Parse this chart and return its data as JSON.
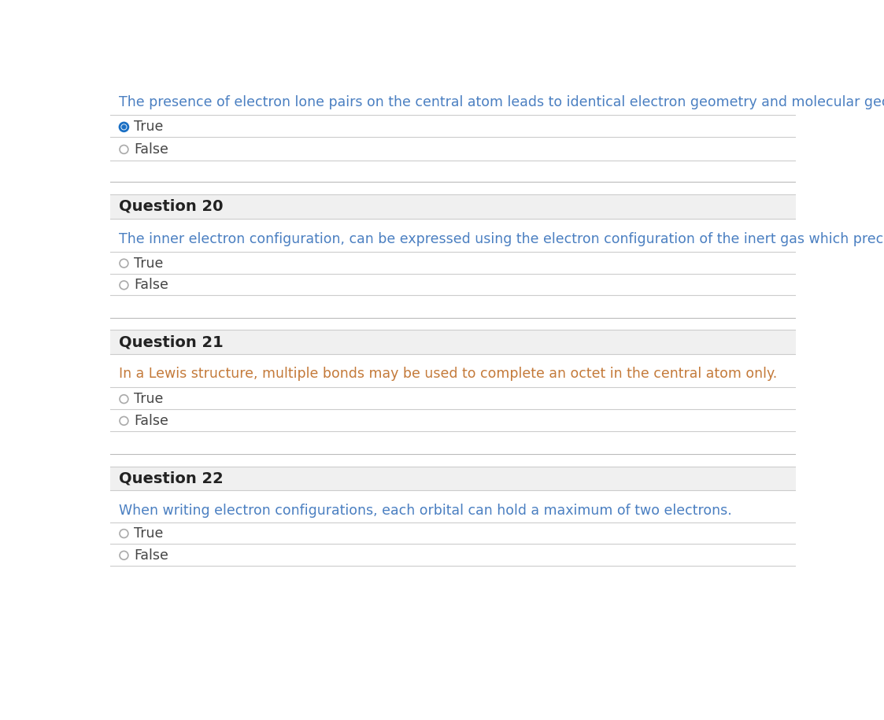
{
  "bg_color": "#ffffff",
  "section_bg_color": "#f0f0f0",
  "line_color": "#cccccc",
  "question_header_color": "#222222",
  "text_color_mixed": "#5a5a5a",
  "radio_unselected_color": "#aaaaaa",
  "radio_selected_color": "#1a6fc4",
  "option_text_color": "#444444",
  "intro_text": "The presence of electron lone pairs on the central atom leads to identical electron geometry and molecular geometries.",
  "q20_header": "Question 20",
  "q20_text": "The inner electron configuration, can be expressed using the electron configuration of the inert gas which precedes the element.",
  "q21_header": "Question 21",
  "q21_text": "In a Lewis structure, multiple bonds may be used to complete an octet in the central atom only.",
  "q22_header": "Question 22",
  "q22_text": "When writing electron configurations, each orbital can hold a maximum of two electrons.",
  "font_size_question_text": 12.5,
  "font_size_option": 12.5,
  "font_size_header": 14
}
